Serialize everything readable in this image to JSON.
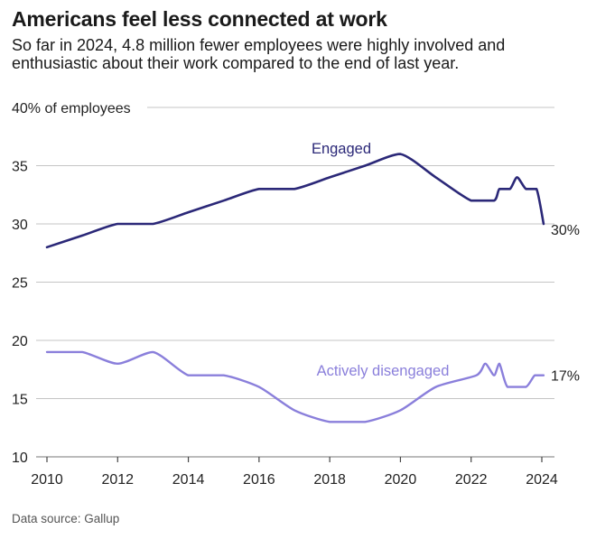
{
  "title": "Americans feel less connected at work",
  "subtitle": "So far in 2024, 4.8 million fewer employees were highly involved and enthusiastic about their work compared to the end of last year.",
  "source": "Data source: Gallup",
  "chart_data": {
    "type": "line",
    "title": "Americans feel less connected at work",
    "ylabel": "% of employees",
    "top_tick_label": "40% of employees",
    "ylim": [
      10,
      40
    ],
    "yticks": [
      10,
      15,
      20,
      25,
      30,
      35,
      40
    ],
    "ytick_labels": [
      "10",
      "15",
      "20",
      "25",
      "30",
      "35",
      "40% of employees"
    ],
    "xlim": [
      2010,
      2024
    ],
    "xticks": [
      2010,
      2012,
      2014,
      2016,
      2018,
      2020,
      2022,
      2024
    ],
    "xtick_labels": [
      "2010",
      "2012",
      "2014",
      "2016",
      "2018",
      "2020",
      "2022",
      "2024"
    ],
    "grid": true,
    "series": [
      {
        "name": "Engaged",
        "color": "#2b2878",
        "end_label": "30%",
        "x": [
          2010,
          2011,
          2012,
          2013,
          2014,
          2015,
          2016,
          2017,
          2018,
          2019,
          2020,
          2021,
          2022,
          2022.65,
          2022.8,
          2023.1,
          2023.3,
          2023.55,
          2023.85,
          2024.05
        ],
        "y": [
          28,
          29,
          30,
          30,
          31,
          32,
          33,
          33,
          34,
          35,
          36,
          34,
          32,
          32,
          33,
          33,
          34,
          33,
          33,
          30
        ]
      },
      {
        "name": "Actively disengaged",
        "color": "#8a7fdb",
        "end_label": "17%",
        "x": [
          2010,
          2011,
          2012,
          2013,
          2014,
          2015,
          2016,
          2017,
          2018,
          2019,
          2020,
          2021,
          2022.15,
          2022.4,
          2022.65,
          2022.8,
          2023.03,
          2023.55,
          2023.8,
          2024.05
        ],
        "y": [
          19,
          19,
          18,
          19,
          17,
          17,
          16,
          14,
          13,
          13,
          14,
          16,
          17,
          18,
          17,
          18,
          16,
          16,
          17,
          17
        ]
      }
    ]
  }
}
